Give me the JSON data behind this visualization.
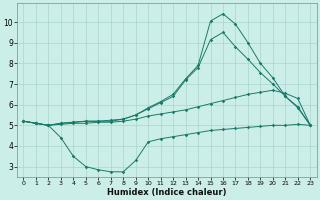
{
  "background_color": "#cceee8",
  "grid_color": "#aad4cc",
  "line_color": "#1a7a6a",
  "xlabel": "Humidex (Indice chaleur)",
  "xlim": [
    -0.5,
    23.5
  ],
  "ylim": [
    2.5,
    10.9
  ],
  "xticks": [
    0,
    1,
    2,
    3,
    4,
    5,
    6,
    7,
    8,
    9,
    10,
    11,
    12,
    13,
    14,
    15,
    16,
    17,
    18,
    19,
    20,
    21,
    22,
    23
  ],
  "yticks": [
    3,
    4,
    5,
    6,
    7,
    8,
    9,
    10
  ],
  "curve1_x": [
    0,
    1,
    2,
    3,
    4,
    5,
    6,
    7,
    8,
    9,
    10,
    11,
    12,
    13,
    14,
    15,
    16,
    17,
    18,
    19,
    20,
    21,
    22,
    23
  ],
  "curve1_y": [
    5.2,
    5.1,
    5.0,
    4.4,
    3.5,
    3.0,
    2.85,
    2.75,
    2.75,
    3.3,
    4.2,
    4.35,
    4.45,
    4.55,
    4.65,
    4.75,
    4.8,
    4.85,
    4.9,
    4.95,
    5.0,
    5.0,
    5.05,
    5.0
  ],
  "curve2_x": [
    0,
    1,
    2,
    3,
    4,
    5,
    6,
    7,
    8,
    9,
    10,
    11,
    12,
    13,
    14,
    15,
    16,
    17,
    18,
    19,
    20,
    21,
    22,
    23
  ],
  "curve2_y": [
    5.2,
    5.1,
    5.0,
    5.05,
    5.1,
    5.1,
    5.15,
    5.15,
    5.2,
    5.3,
    5.45,
    5.55,
    5.65,
    5.75,
    5.9,
    6.05,
    6.2,
    6.35,
    6.5,
    6.6,
    6.7,
    6.55,
    6.3,
    5.0
  ],
  "curve3_x": [
    0,
    1,
    2,
    3,
    4,
    5,
    6,
    7,
    8,
    9,
    10,
    11,
    12,
    13,
    14,
    15,
    16,
    17,
    18,
    19,
    20,
    21,
    22,
    23
  ],
  "curve3_y": [
    5.2,
    5.1,
    5.0,
    5.1,
    5.15,
    5.2,
    5.2,
    5.2,
    5.3,
    5.5,
    5.8,
    6.1,
    6.4,
    7.2,
    7.8,
    9.15,
    9.5,
    8.8,
    8.2,
    7.55,
    7.0,
    6.4,
    5.9,
    5.0
  ],
  "curve4_x": [
    0,
    1,
    2,
    3,
    4,
    5,
    6,
    7,
    8,
    9,
    10,
    11,
    12,
    13,
    14,
    15,
    16,
    17,
    18,
    19,
    20,
    21,
    22,
    23
  ],
  "curve4_y": [
    5.2,
    5.1,
    5.0,
    5.1,
    5.15,
    5.2,
    5.2,
    5.25,
    5.3,
    5.5,
    5.85,
    6.15,
    6.5,
    7.25,
    7.9,
    10.05,
    10.4,
    9.9,
    9.0,
    8.0,
    7.3,
    6.4,
    5.85,
    5.0
  ]
}
